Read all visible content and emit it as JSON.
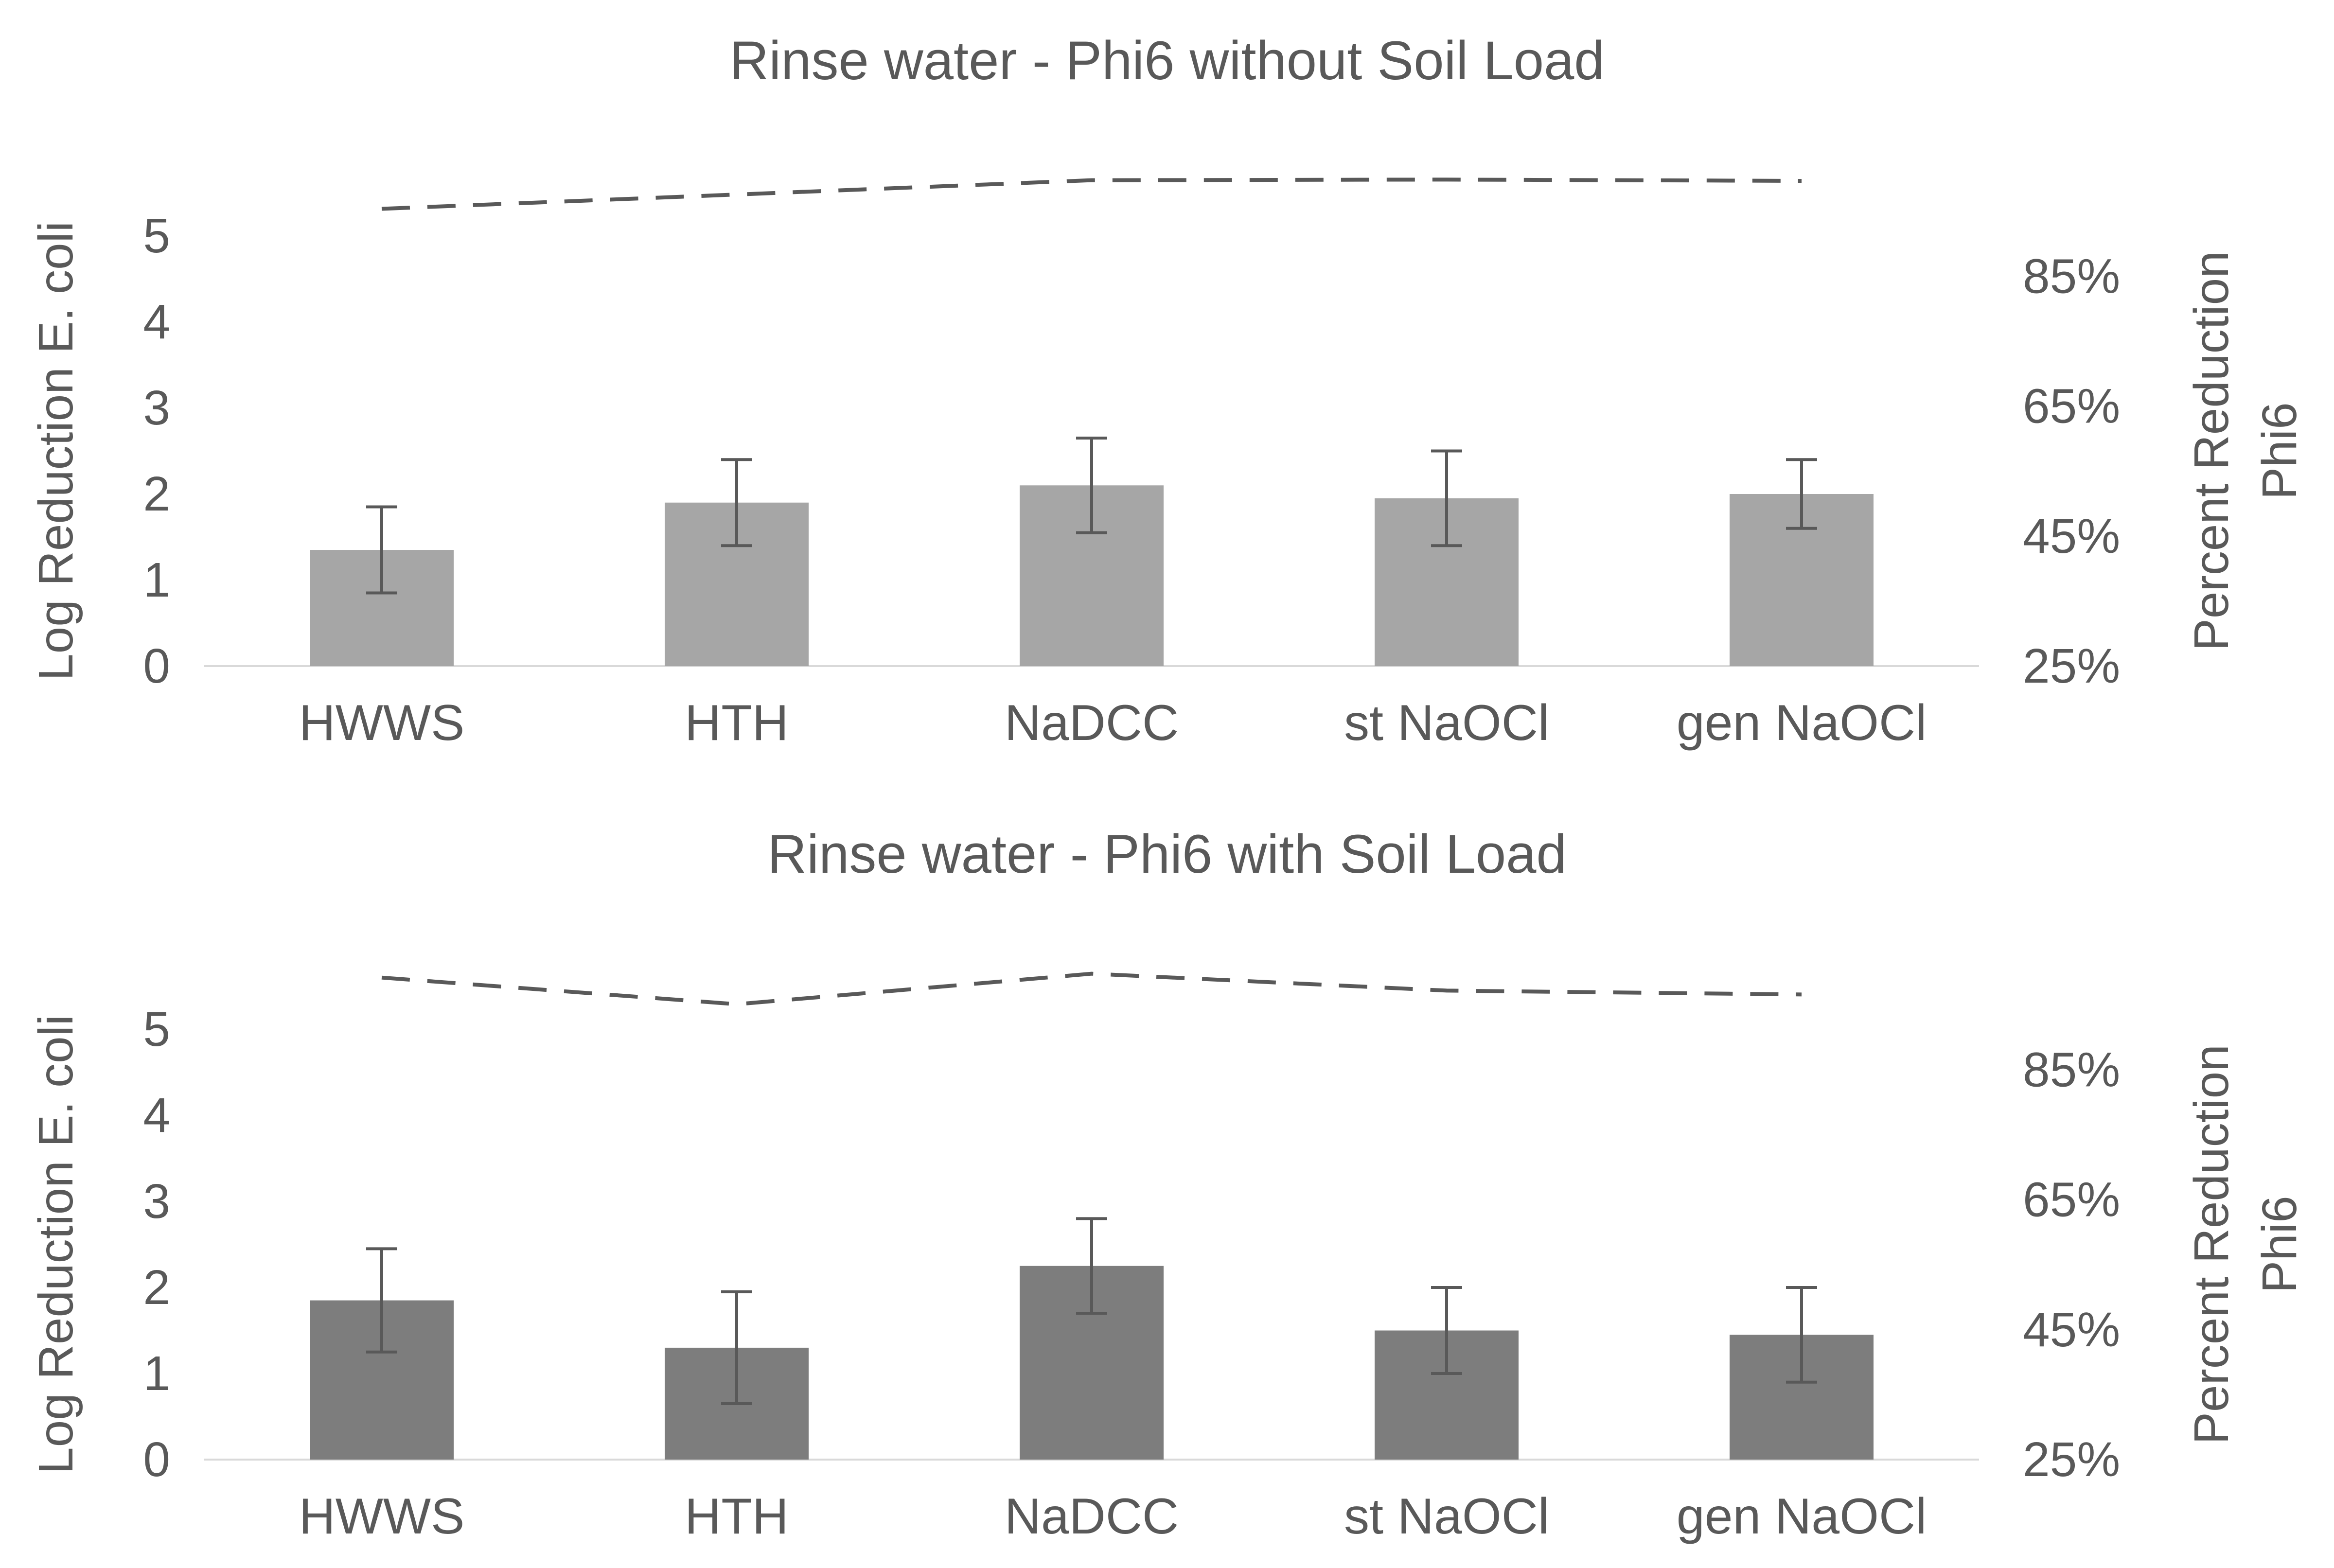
{
  "figure": {
    "background": "#ffffff",
    "text_color": "#595959",
    "axis_line_color": "#d9d9d9",
    "error_bar_color": "#595959",
    "dashed_line_color": "#595959"
  },
  "chart_data": [
    {
      "type": "bar",
      "title": "Rinse water - Phi6 without Soil Load",
      "categories": [
        "HWWS",
        "HTH",
        "NaDCC",
        "st NaOCl",
        "gen NaOCl"
      ],
      "bar_color": "#a6a6a6",
      "legend": "none",
      "grid": "off",
      "left_axis": {
        "title": "Log Reduction E. coli",
        "ticks": [
          {
            "label": "0",
            "value": 0
          },
          {
            "label": "1",
            "value": 1
          },
          {
            "label": "2",
            "value": 2
          },
          {
            "label": "3",
            "value": 3
          },
          {
            "label": "4",
            "value": 4
          },
          {
            "label": "5",
            "value": 5
          }
        ],
        "range": [
          0,
          5.8
        ]
      },
      "right_axis": {
        "title_lines": [
          "Percent Reduction",
          "Phi6"
        ],
        "ticks": [
          {
            "label": "25%",
            "value": 25
          },
          {
            "label": "45%",
            "value": 45
          },
          {
            "label": "65%",
            "value": 65
          },
          {
            "label": "85%",
            "value": 85
          }
        ],
        "range": [
          25,
          101
        ]
      },
      "series": [
        {
          "name": "Log Reduction E. coli",
          "plot": "bar",
          "axis": "left",
          "values": [
            1.35,
            1.9,
            2.1,
            1.95,
            2.0
          ],
          "error": [
            0.5,
            0.5,
            0.55,
            0.55,
            0.4
          ]
        },
        {
          "name": "Percent Reduction Phi6",
          "plot": "dashed-line",
          "axis": "right",
          "values": [
            95.4,
            97.6,
            99.8,
            99.9,
            99.7
          ]
        }
      ]
    },
    {
      "type": "bar",
      "title": "Rinse water - Phi6 with Soil Load",
      "categories": [
        "HWWS",
        "HTH",
        "NaDCC",
        "st NaOCl",
        "gen NaOCl"
      ],
      "bar_color": "#7d7d7d",
      "legend": "none",
      "grid": "off",
      "left_axis": {
        "title": "Log Reduction E. coli",
        "ticks": [
          {
            "label": "0",
            "value": 0
          },
          {
            "label": "1",
            "value": 1
          },
          {
            "label": "2",
            "value": 2
          },
          {
            "label": "3",
            "value": 3
          },
          {
            "label": "4",
            "value": 4
          },
          {
            "label": "5",
            "value": 5
          }
        ],
        "range": [
          0,
          5.8
        ]
      },
      "right_axis": {
        "title_lines": [
          "Percent Reduction",
          "Phi6"
        ],
        "ticks": [
          {
            "label": "25%",
            "value": 25
          },
          {
            "label": "45%",
            "value": 45
          },
          {
            "label": "65%",
            "value": 65
          },
          {
            "label": "85%",
            "value": 85
          }
        ],
        "range": [
          25,
          101
        ]
      },
      "series": [
        {
          "name": "Log Reduction E. coli",
          "plot": "bar",
          "axis": "left",
          "values": [
            1.85,
            1.3,
            2.25,
            1.5,
            1.45
          ],
          "error": [
            0.6,
            0.65,
            0.55,
            0.5,
            0.55
          ]
        },
        {
          "name": "Percent Reduction Phi6",
          "plot": "dashed-line",
          "axis": "right",
          "values": [
            99.2,
            95.1,
            99.8,
            97.2,
            96.6
          ]
        }
      ]
    }
  ]
}
